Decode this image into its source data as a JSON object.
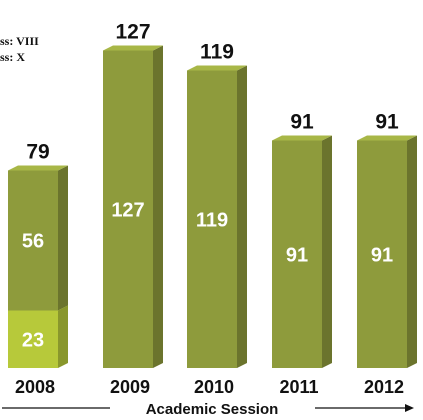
{
  "chart_data": {
    "type": "bar",
    "stacked": true,
    "categories": [
      "2008",
      "2009",
      "2010",
      "2011",
      "2012"
    ],
    "series": [
      {
        "values": [
          23,
          null,
          null,
          null,
          null
        ],
        "color": "#b7c93a"
      },
      {
        "values": [
          56,
          127,
          119,
          91,
          91
        ],
        "color": "#8e9b3c"
      }
    ],
    "totals": [
      79,
      127,
      119,
      91,
      91
    ],
    "legend": [
      "ss: VIII",
      "ss: X"
    ],
    "xlabel": "Academic Session",
    "title": "",
    "ylabel": "",
    "grid": false,
    "legend_position": "top-left"
  }
}
